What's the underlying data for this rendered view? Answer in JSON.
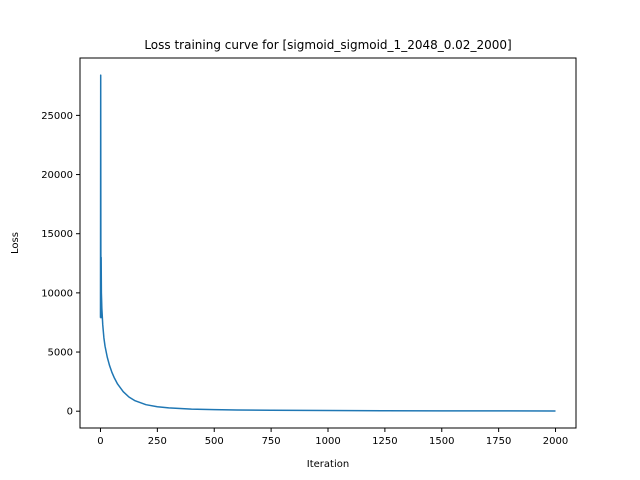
{
  "chart_data": {
    "type": "line",
    "title": "Loss training curve for [sigmoid_sigmoid_1_2048_0.02_2000]",
    "xlabel": "Iteration",
    "ylabel": "Loss",
    "xlim": [
      -90,
      2090
    ],
    "ylim": [
      -1420,
      29850
    ],
    "x_ticks": [
      0,
      250,
      500,
      750,
      1000,
      1250,
      1500,
      1750,
      2000
    ],
    "y_ticks": [
      0,
      5000,
      10000,
      15000,
      20000,
      25000
    ],
    "grid": false,
    "legend": "none",
    "series": [
      {
        "color": "#1f77b4",
        "x": [
          0,
          1,
          2,
          3,
          4,
          5,
          6,
          8,
          10,
          15,
          20,
          30,
          40,
          50,
          60,
          75,
          100,
          125,
          150,
          200,
          250,
          300,
          400,
          500,
          600,
          750,
          1000,
          1250,
          1500,
          1750,
          2000
        ],
        "y": [
          7900,
          28400,
          7900,
          13000,
          10000,
          9400,
          8700,
          8000,
          7300,
          6200,
          5500,
          4550,
          3850,
          3300,
          2850,
          2300,
          1650,
          1200,
          900,
          550,
          380,
          280,
          180,
          130,
          105,
          80,
          55,
          40,
          30,
          25,
          20
        ]
      }
    ]
  }
}
